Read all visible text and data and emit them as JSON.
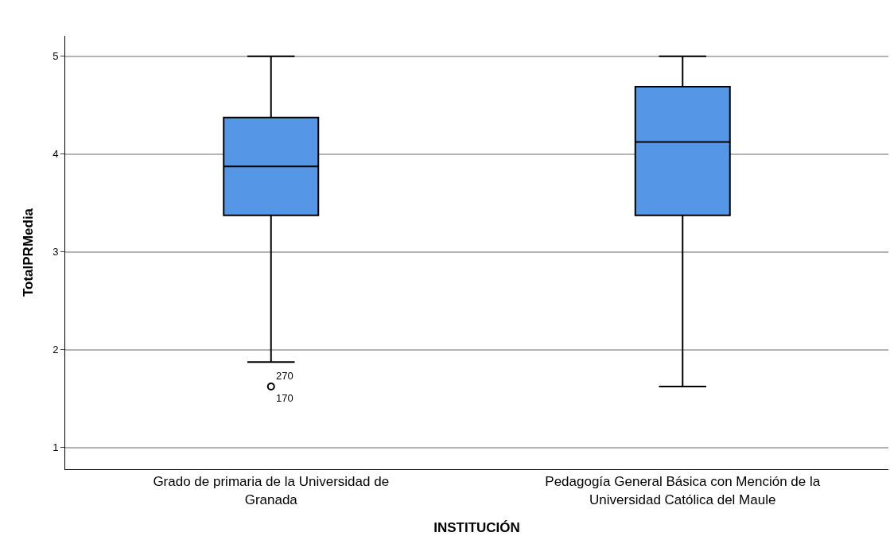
{
  "chart_data": {
    "type": "box",
    "xlabel": "INSTITUCIÓN",
    "ylabel": "TotalPRMedia",
    "categories": [
      "Grado de primaria de la Universidad de Granada",
      "Pedagogía General Básica con Mención de la Universidad Católica del Maule"
    ],
    "boxes": [
      {
        "low": 1.875,
        "q1": 3.375,
        "median": 3.875,
        "q3": 4.375,
        "high": 5,
        "outliers": [
          1.625
        ]
      },
      {
        "low": 1.625,
        "q1": 3.375,
        "median": 4.125,
        "q3": 4.69,
        "high": 5
      }
    ],
    "color": "#5596e6",
    "ylim": [
      0.78,
      5.21
    ],
    "yticks": [
      1,
      2,
      3,
      4,
      5
    ],
    "grid": "y",
    "legend": false,
    "marker": "circle",
    "annotations": [
      "270",
      "170"
    ]
  }
}
